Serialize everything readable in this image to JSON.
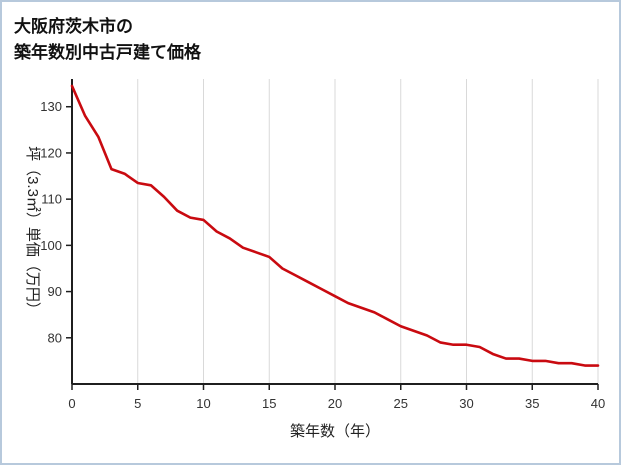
{
  "chart_data": {
    "type": "line",
    "title_lines": [
      "大阪府茨木市の",
      "築年数別中古戸建て価格"
    ],
    "xlabel": "築年数（年）",
    "ylabel": "坪（3.3㎡）単価（万円）",
    "x": [
      0,
      1,
      2,
      3,
      4,
      5,
      6,
      7,
      8,
      9,
      10,
      11,
      12,
      13,
      14,
      15,
      16,
      17,
      18,
      19,
      20,
      21,
      22,
      23,
      24,
      25,
      26,
      27,
      28,
      29,
      30,
      31,
      32,
      33,
      34,
      35,
      36,
      37,
      38,
      39,
      40
    ],
    "y": [
      134.5,
      128,
      123.5,
      116.5,
      115.5,
      113.5,
      113,
      110.5,
      107.5,
      106,
      105.5,
      103,
      101.5,
      99.5,
      98.5,
      97.5,
      95,
      93.5,
      92,
      90.5,
      89,
      87.5,
      86.5,
      85.5,
      84,
      82.5,
      81.5,
      80.5,
      79,
      78.5,
      78.5,
      78,
      76.5,
      75.5,
      75.5,
      75,
      75,
      74.5,
      74.5,
      74,
      74
    ],
    "xlim": [
      0,
      40
    ],
    "ylim": [
      70,
      136
    ],
    "xticks": [
      0,
      5,
      10,
      15,
      20,
      25,
      30,
      35,
      40
    ],
    "yticks": [
      80,
      90,
      100,
      110,
      120,
      130
    ],
    "line_color": "#c90a10",
    "grid_color": "#d9d9d9",
    "axis_color": "#1f1f1f",
    "legend": "none",
    "grid": "vertical-only"
  }
}
